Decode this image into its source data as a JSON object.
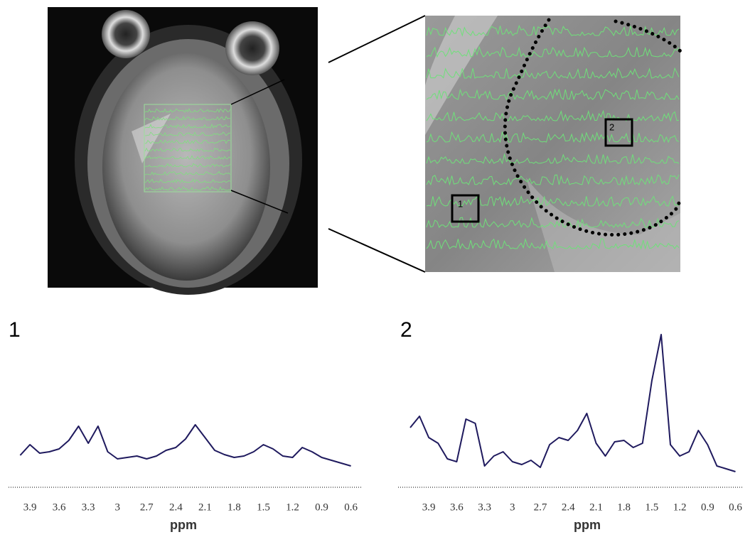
{
  "chart_data": [
    {
      "type": "line",
      "title": "1",
      "x_label": "ppm",
      "color": "#1f1a5e",
      "x": [
        4.0,
        3.9,
        3.8,
        3.7,
        3.6,
        3.5,
        3.4,
        3.3,
        3.2,
        3.1,
        3.0,
        2.9,
        2.8,
        2.7,
        2.6,
        2.5,
        2.4,
        2.3,
        2.2,
        2.1,
        2.0,
        1.9,
        1.8,
        1.7,
        1.6,
        1.5,
        1.4,
        1.3,
        1.2,
        1.1,
        1.0,
        0.9,
        0.8,
        0.7,
        0.6
      ],
      "values": [
        45,
        60,
        48,
        50,
        54,
        66,
        86,
        62,
        86,
        50,
        40,
        42,
        44,
        40,
        44,
        52,
        56,
        68,
        88,
        70,
        52,
        46,
        42,
        44,
        50,
        60,
        54,
        44,
        42,
        56,
        50,
        42,
        38,
        34,
        30
      ],
      "xlim": [
        4.12,
        0.48
      ],
      "ylim": [
        0,
        236
      ],
      "xticks": [
        3.9,
        3.6,
        3.3,
        3.0,
        2.7,
        2.4,
        2.1,
        1.8,
        1.5,
        1.2,
        0.9,
        0.6
      ]
    },
    {
      "type": "line",
      "title": "2",
      "x_label": "ppm",
      "color": "#1f1a5e",
      "x": [
        4.1,
        4.0,
        3.9,
        3.8,
        3.7,
        3.6,
        3.5,
        3.4,
        3.3,
        3.2,
        3.1,
        3.0,
        2.9,
        2.8,
        2.7,
        2.6,
        2.5,
        2.4,
        2.3,
        2.2,
        2.1,
        2.0,
        1.9,
        1.8,
        1.7,
        1.6,
        1.5,
        1.4,
        1.3,
        1.2,
        1.1,
        1.0,
        0.9,
        0.8,
        0.7,
        0.6
      ],
      "values": [
        84,
        100,
        70,
        62,
        40,
        36,
        96,
        90,
        30,
        44,
        50,
        36,
        32,
        38,
        28,
        60,
        70,
        66,
        80,
        104,
        62,
        44,
        64,
        66,
        56,
        62,
        150,
        215,
        60,
        44,
        50,
        80,
        60,
        30,
        26,
        22
      ],
      "xlim": [
        4.23,
        0.52
      ],
      "ylim": [
        0,
        236
      ],
      "xticks": [
        3.9,
        3.6,
        3.3,
        3.0,
        2.7,
        2.4,
        2.1,
        1.8,
        1.5,
        1.2,
        0.9,
        0.6
      ]
    }
  ],
  "inset": {
    "boxes": [
      "1",
      "2"
    ]
  }
}
